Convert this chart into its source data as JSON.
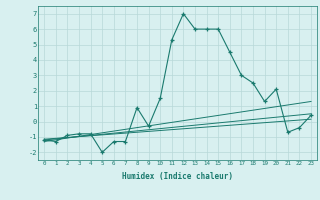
{
  "x": [
    0,
    1,
    2,
    3,
    4,
    5,
    6,
    7,
    8,
    9,
    10,
    11,
    12,
    13,
    14,
    15,
    16,
    17,
    18,
    19,
    20,
    21,
    22,
    23
  ],
  "line1": [
    -1.2,
    -1.3,
    -0.9,
    -0.8,
    -0.8,
    -2.0,
    -1.3,
    -1.3,
    0.9,
    -0.3,
    1.5,
    5.3,
    7.0,
    6.0,
    6.0,
    6.0,
    4.5,
    3.0,
    2.5,
    1.3,
    2.1,
    -0.7,
    -0.4,
    0.4
  ],
  "trend1_x": [
    0,
    23
  ],
  "trend1_y": [
    -1.3,
    1.3
  ],
  "trend2_x": [
    0,
    23
  ],
  "trend2_y": [
    -1.2,
    0.5
  ],
  "trend3_x": [
    0,
    23
  ],
  "trend3_y": [
    -1.15,
    0.15
  ],
  "color": "#1a7a6e",
  "bg_color": "#d8f0f0",
  "grid_color": "#b8d8d8",
  "xlabel": "Humidex (Indice chaleur)",
  "ylim": [
    -2.5,
    7.5
  ],
  "xlim": [
    -0.5,
    23.5
  ],
  "yticks": [
    -2,
    -1,
    0,
    1,
    2,
    3,
    4,
    5,
    6,
    7
  ],
  "xticks": [
    0,
    1,
    2,
    3,
    4,
    5,
    6,
    7,
    8,
    9,
    10,
    11,
    12,
    13,
    14,
    15,
    16,
    17,
    18,
    19,
    20,
    21,
    22,
    23
  ]
}
